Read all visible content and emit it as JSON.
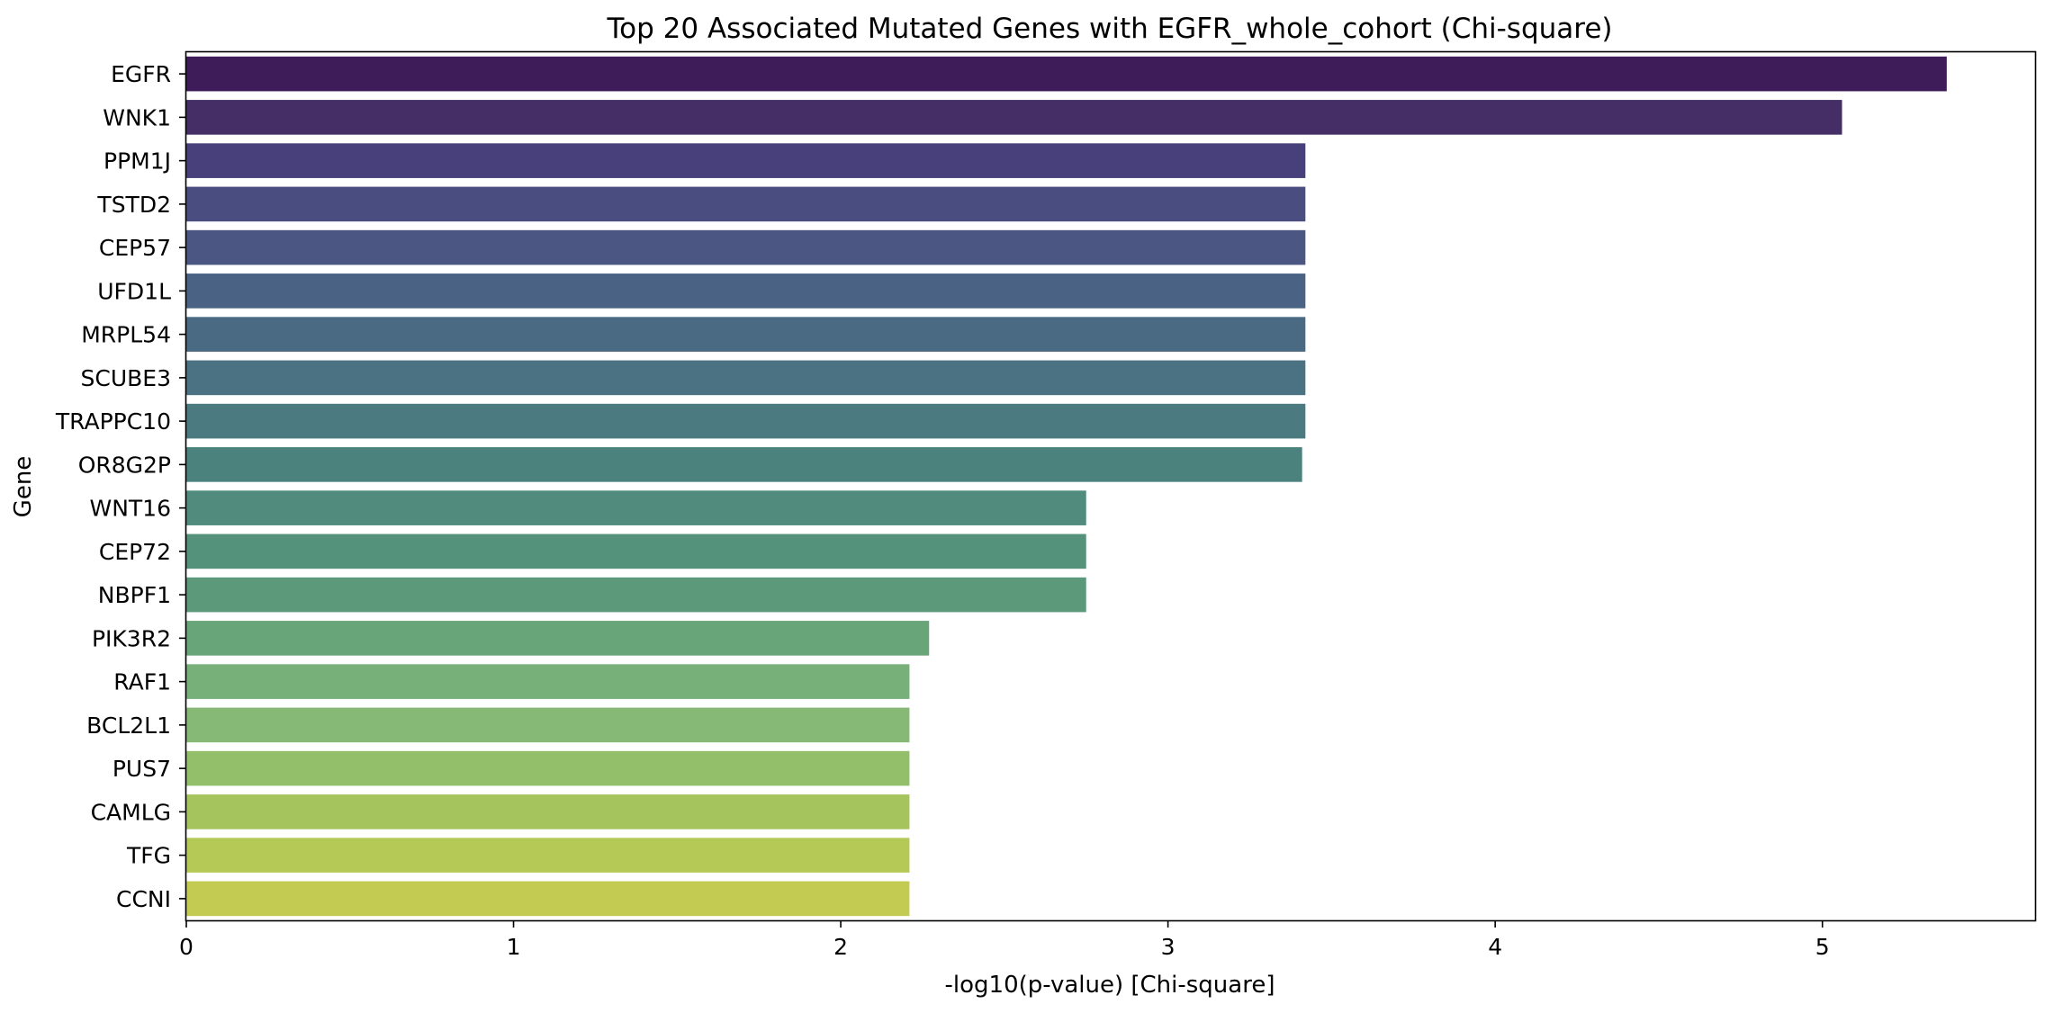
{
  "chart_data": {
    "type": "bar",
    "orientation": "horizontal",
    "title": "Top 20 Associated Mutated Genes with EGFR_whole_cohort (Chi-square)",
    "xlabel": "-log10(p-value) [Chi-square]",
    "ylabel": "Gene",
    "xlim": [
      0,
      5.65
    ],
    "xticks": [
      0,
      1,
      2,
      3,
      4,
      5
    ],
    "grid": false,
    "legend": "none",
    "colormap": "viridis",
    "categories": [
      "EGFR",
      "WNK1",
      "PPM1J",
      "TSTD2",
      "CEP57",
      "UFD1L",
      "MRPL54",
      "SCUBE3",
      "TRAPPC10",
      "OR8G2P",
      "WNT16",
      "CEP72",
      "NBPF1",
      "PIK3R2",
      "RAF1",
      "BCL2L1",
      "PUS7",
      "CAMLG",
      "TFG",
      "CCNI"
    ],
    "values": [
      5.38,
      5.06,
      3.42,
      3.42,
      3.42,
      3.42,
      3.42,
      3.42,
      3.42,
      3.41,
      2.75,
      2.75,
      2.75,
      2.27,
      2.21,
      2.21,
      2.21,
      2.21,
      2.21,
      2.21
    ],
    "colors": [
      "#3e1c5a",
      "#452e66",
      "#48407a",
      "#4a4d80",
      "#4b5683",
      "#4a6284",
      "#4a6a83",
      "#4a7282",
      "#4b7a80",
      "#4c827e",
      "#508b7d",
      "#55927c",
      "#5c997a",
      "#68a579",
      "#78b07a",
      "#86b975",
      "#94bf6a",
      "#a5c45e",
      "#b5c957",
      "#c4cb52"
    ]
  }
}
